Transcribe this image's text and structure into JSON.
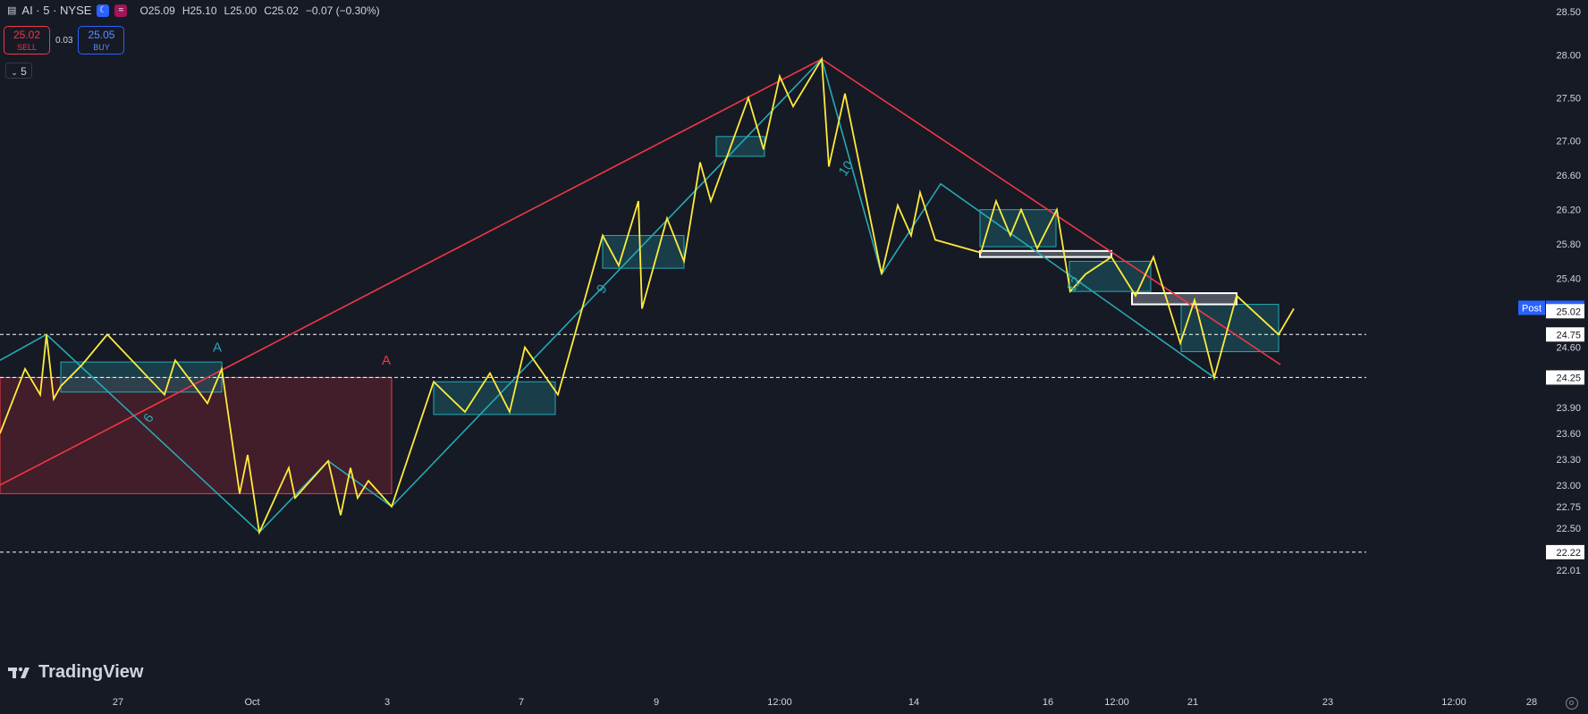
{
  "header": {
    "symbol": "AI · 5 · NYSE",
    "open": "O25.09",
    "high": "H25.10",
    "low": "L25.00",
    "close": "C25.02",
    "change": "−0.07 (−0.30%)"
  },
  "trade": {
    "sell_price": "25.02",
    "sell_label": "SELL",
    "spread": "0.03",
    "buy_price": "25.05",
    "buy_label": "BUY"
  },
  "interval": "5",
  "logo_text": "TradingView",
  "colors": {
    "background": "#161a25",
    "price_line": "#ffeb3b",
    "zigzag": "#26a9b5",
    "trend": "#f23645",
    "box_fill": "#1e5c68",
    "red_box_fill": "#4a1f2b"
  },
  "chart_data": {
    "type": "line",
    "ylim": [
      22.01,
      28.5
    ],
    "price_axis_ticks": [
      "28.50",
      "28.00",
      "27.50",
      "27.00",
      "26.60",
      "26.20",
      "25.80",
      "25.40",
      "24.60",
      "23.90",
      "23.60",
      "23.30",
      "23.00",
      "22.75",
      "22.50",
      "22.01"
    ],
    "time_axis_labels": [
      "27",
      "Oct",
      "3",
      "7",
      "9",
      "12:00",
      "14",
      "16",
      "12:00",
      "21",
      "23",
      "12:00",
      "28"
    ],
    "price_labels": [
      {
        "name": "Post",
        "value": "25.06",
        "style": "post"
      },
      {
        "value": "25.02",
        "style": "last"
      },
      {
        "value": "24.75",
        "style": "level"
      },
      {
        "value": "24.25",
        "style": "level"
      },
      {
        "value": "22.22",
        "style": "level"
      }
    ],
    "dashed_levels": [
      24.75,
      24.25,
      22.22
    ],
    "price_series": [
      [
        0,
        23.6
      ],
      [
        28,
        24.35
      ],
      [
        45,
        24.05
      ],
      [
        52,
        24.75
      ],
      [
        60,
        24.0
      ],
      [
        68,
        24.15
      ],
      [
        92,
        24.4
      ],
      [
        120,
        24.75
      ],
      [
        184,
        24.05
      ],
      [
        196,
        24.45
      ],
      [
        232,
        23.95
      ],
      [
        248,
        24.35
      ],
      [
        268,
        22.9
      ],
      [
        277,
        23.35
      ],
      [
        290,
        22.45
      ],
      [
        323,
        23.2
      ],
      [
        330,
        22.85
      ],
      [
        367,
        23.28
      ],
      [
        381,
        22.65
      ],
      [
        392,
        23.2
      ],
      [
        400,
        22.85
      ],
      [
        412,
        23.05
      ],
      [
        438,
        22.75
      ],
      [
        485,
        24.2
      ],
      [
        520,
        23.85
      ],
      [
        548,
        24.3
      ],
      [
        570,
        23.85
      ],
      [
        587,
        24.6
      ],
      [
        624,
        24.05
      ],
      [
        674,
        25.9
      ],
      [
        692,
        25.55
      ],
      [
        714,
        26.3
      ],
      [
        718,
        25.05
      ],
      [
        746,
        26.1
      ],
      [
        765,
        25.6
      ],
      [
        783,
        26.75
      ],
      [
        795,
        26.3
      ],
      [
        837,
        27.5
      ],
      [
        854,
        26.9
      ],
      [
        872,
        27.75
      ],
      [
        887,
        27.4
      ],
      [
        919,
        27.95
      ],
      [
        927,
        26.7
      ],
      [
        945,
        27.55
      ],
      [
        986,
        25.45
      ],
      [
        1004,
        26.25
      ],
      [
        1019,
        25.9
      ],
      [
        1029,
        26.4
      ],
      [
        1046,
        25.85
      ],
      [
        1097,
        25.7
      ],
      [
        1114,
        26.3
      ],
      [
        1130,
        25.9
      ],
      [
        1142,
        26.2
      ],
      [
        1160,
        25.75
      ],
      [
        1182,
        26.2
      ],
      [
        1197,
        25.25
      ],
      [
        1214,
        25.45
      ],
      [
        1243,
        25.65
      ],
      [
        1270,
        25.2
      ],
      [
        1290,
        25.65
      ],
      [
        1320,
        24.65
      ],
      [
        1336,
        25.15
      ],
      [
        1358,
        24.25
      ],
      [
        1383,
        25.2
      ],
      [
        1430,
        24.75
      ],
      [
        1447,
        25.05
      ]
    ],
    "zigzag_series": [
      [
        0,
        24.45
      ],
      [
        52,
        24.75
      ],
      [
        290,
        22.45
      ],
      [
        367,
        23.28
      ],
      [
        438,
        22.75
      ],
      [
        919,
        27.95
      ],
      [
        986,
        25.45
      ],
      [
        1052,
        26.5
      ],
      [
        1358,
        24.25
      ]
    ],
    "zigzag_labels": [
      {
        "text": "6",
        "x": 170,
        "y": 23.75
      },
      {
        "text": "9",
        "x": 677,
        "y": 25.25
      },
      {
        "text": "10",
        "x": 950,
        "y": 26.65
      },
      {
        "text": "12",
        "x": 1205,
        "y": 25.3
      }
    ],
    "trend_lines": [
      {
        "from": [
          0,
          23.0
        ],
        "to": [
          919,
          27.95
        ]
      },
      {
        "from": [
          919,
          27.95
        ],
        "to": [
          1432,
          24.4
        ]
      }
    ],
    "pattern_labels": [
      {
        "text": "A",
        "x": 243,
        "y": 24.55,
        "color": "zigzag"
      },
      {
        "text": "A",
        "x": 432,
        "y": 24.4,
        "color": "trend"
      }
    ],
    "boxes": [
      {
        "kind": "red",
        "x1": 0,
        "x2": 438,
        "y1": 24.25,
        "y2": 22.9
      },
      {
        "kind": "teal",
        "x1": 68,
        "x2": 248,
        "y1": 24.43,
        "y2": 24.08
      },
      {
        "kind": "teal",
        "x1": 485,
        "x2": 621,
        "y1": 24.2,
        "y2": 23.82
      },
      {
        "kind": "teal",
        "x1": 674,
        "x2": 765,
        "y1": 25.9,
        "y2": 25.52
      },
      {
        "kind": "teal",
        "x1": 801,
        "x2": 855,
        "y1": 27.05,
        "y2": 26.82
      },
      {
        "kind": "teal",
        "x1": 1096,
        "x2": 1181,
        "y1": 26.2,
        "y2": 25.77
      },
      {
        "kind": "teal",
        "x1": 1196,
        "x2": 1287,
        "y1": 25.6,
        "y2": 25.25
      },
      {
        "kind": "teal",
        "x1": 1321,
        "x2": 1430,
        "y1": 25.1,
        "y2": 24.55
      },
      {
        "kind": "white",
        "x1": 1096,
        "x2": 1243,
        "y1": 25.72,
        "y2": 25.65
      },
      {
        "kind": "white",
        "x1": 1266,
        "x2": 1383,
        "y1": 25.23,
        "y2": 25.1
      }
    ]
  }
}
